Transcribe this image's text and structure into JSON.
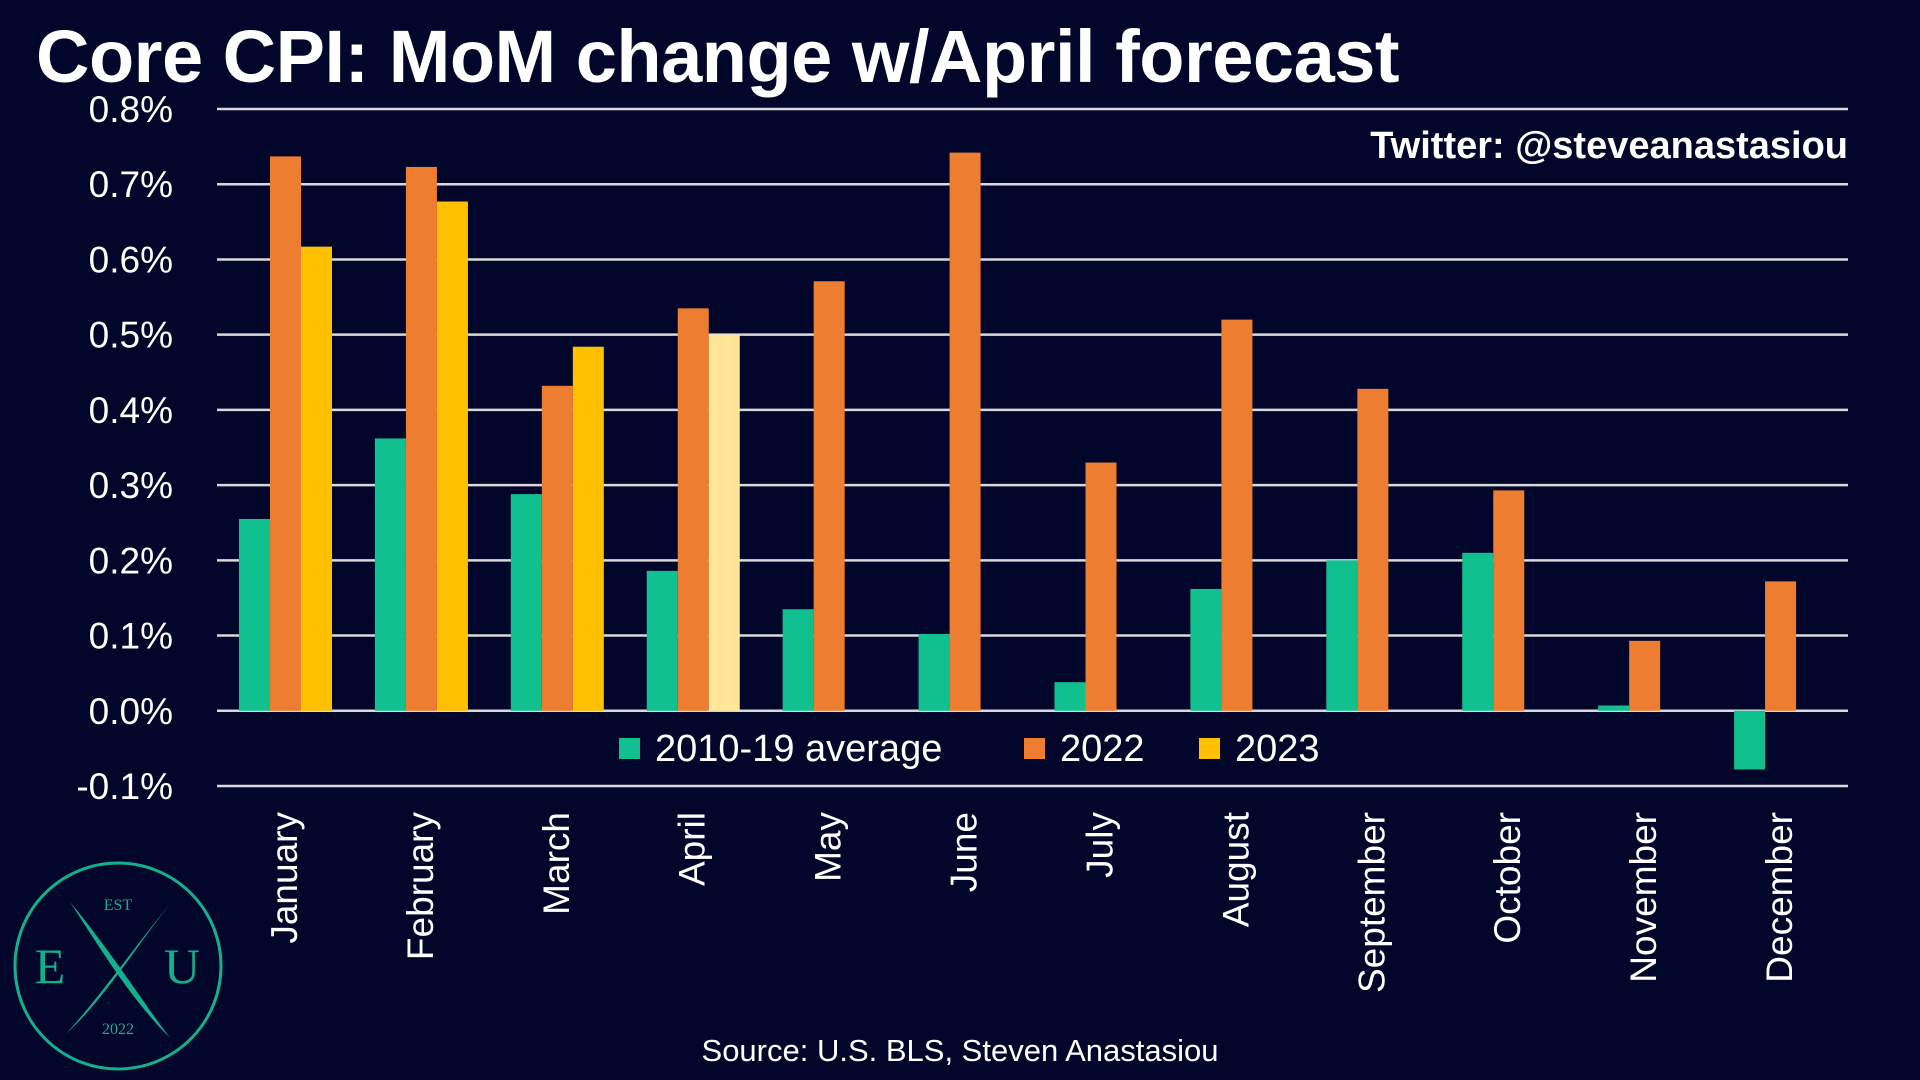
{
  "title": "Core CPI: MoM change w/April forecast",
  "source": "Source: U.S. BLS, Steven Anastasiou",
  "watermark": "Twitter: @steveanastasiou",
  "logo": {
    "top_text": "EST",
    "left_letter": "E",
    "right_letter": "U",
    "bottom_text": "2022",
    "color": "#12b08c"
  },
  "chart_data": {
    "type": "bar",
    "categories": [
      "January",
      "February",
      "March",
      "April",
      "May",
      "June",
      "July",
      "August",
      "September",
      "October",
      "November",
      "December"
    ],
    "series": [
      {
        "name": "2010-19 average",
        "color": "#10c08f",
        "values": [
          0.255,
          0.362,
          0.288,
          0.186,
          0.135,
          0.102,
          0.038,
          0.162,
          0.2,
          0.21,
          0.007,
          -0.078
        ]
      },
      {
        "name": "2022",
        "color": "#ed7d31",
        "values": [
          0.737,
          0.723,
          0.432,
          0.535,
          0.571,
          0.742,
          0.33,
          0.52,
          0.428,
          0.293,
          0.093,
          0.172
        ]
      },
      {
        "name": "2023",
        "color": "#ffc000",
        "forecast_color": "#ffe699",
        "values": [
          0.617,
          0.677,
          0.484,
          0.5,
          null,
          null,
          null,
          null,
          null,
          null,
          null,
          null
        ],
        "forecast": [
          false,
          false,
          false,
          true,
          false,
          false,
          false,
          false,
          false,
          false,
          false,
          false
        ]
      }
    ],
    "y_ticks": [
      -0.1,
      0.0,
      0.1,
      0.2,
      0.3,
      0.4,
      0.5,
      0.6,
      0.7,
      0.8
    ],
    "y_tick_labels": [
      "-0.1%",
      "0.0%",
      "0.1%",
      "0.2%",
      "0.3%",
      "0.4%",
      "0.5%",
      "0.6%",
      "0.7%",
      "0.8%"
    ],
    "ylim": [
      -0.1,
      0.8
    ],
    "xlabel": "",
    "ylabel": "",
    "grid": true,
    "legend": "bottom-center"
  }
}
